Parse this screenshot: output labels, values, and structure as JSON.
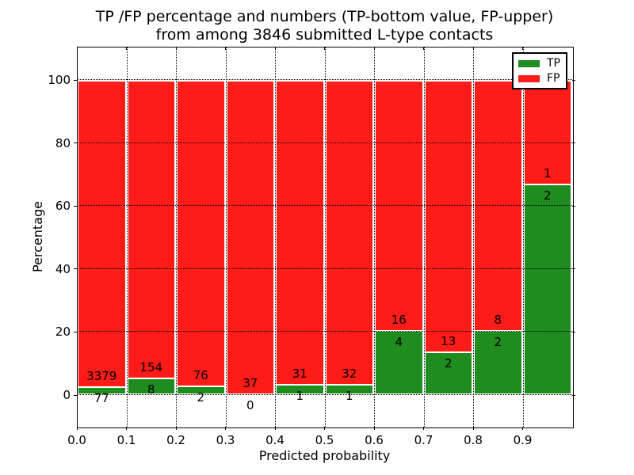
{
  "chart_data": {
    "type": "bar",
    "stacked": true,
    "normalized_to_percent": true,
    "title": "TP /FP percentage and numbers (TP-bottom value, FP-upper)",
    "subtitle": "from among 3846 submitted L-type contacts",
    "xlabel": "Predicted probability",
    "ylabel": "Percentage",
    "categories": [
      "0.0",
      "0.1",
      "0.2",
      "0.3",
      "0.4",
      "0.5",
      "0.6",
      "0.7",
      "0.8",
      "0.9"
    ],
    "bin_width": 0.1,
    "series": [
      {
        "name": "TP",
        "color": "#1e8c1e",
        "counts": [
          77,
          8,
          2,
          0,
          1,
          1,
          4,
          2,
          2,
          2
        ],
        "percent": [
          2.2,
          4.9,
          2.6,
          0.0,
          3.1,
          3.0,
          20.0,
          13.3,
          20.0,
          66.7
        ]
      },
      {
        "name": "FP",
        "color": "#fd1c17",
        "counts": [
          3379,
          154,
          76,
          37,
          31,
          32,
          16,
          13,
          8,
          1
        ],
        "percent": [
          97.8,
          95.1,
          97.4,
          100.0,
          96.9,
          97.0,
          80.0,
          86.7,
          80.0,
          33.3
        ]
      }
    ],
    "yticks": [
      0,
      20,
      40,
      60,
      80,
      100
    ],
    "xlim": [
      0,
      1
    ],
    "ylim": [
      -10,
      110.5
    ],
    "grid": "dotted",
    "legend": {
      "position": "upper-right",
      "entries": [
        "TP",
        "FP"
      ]
    }
  }
}
